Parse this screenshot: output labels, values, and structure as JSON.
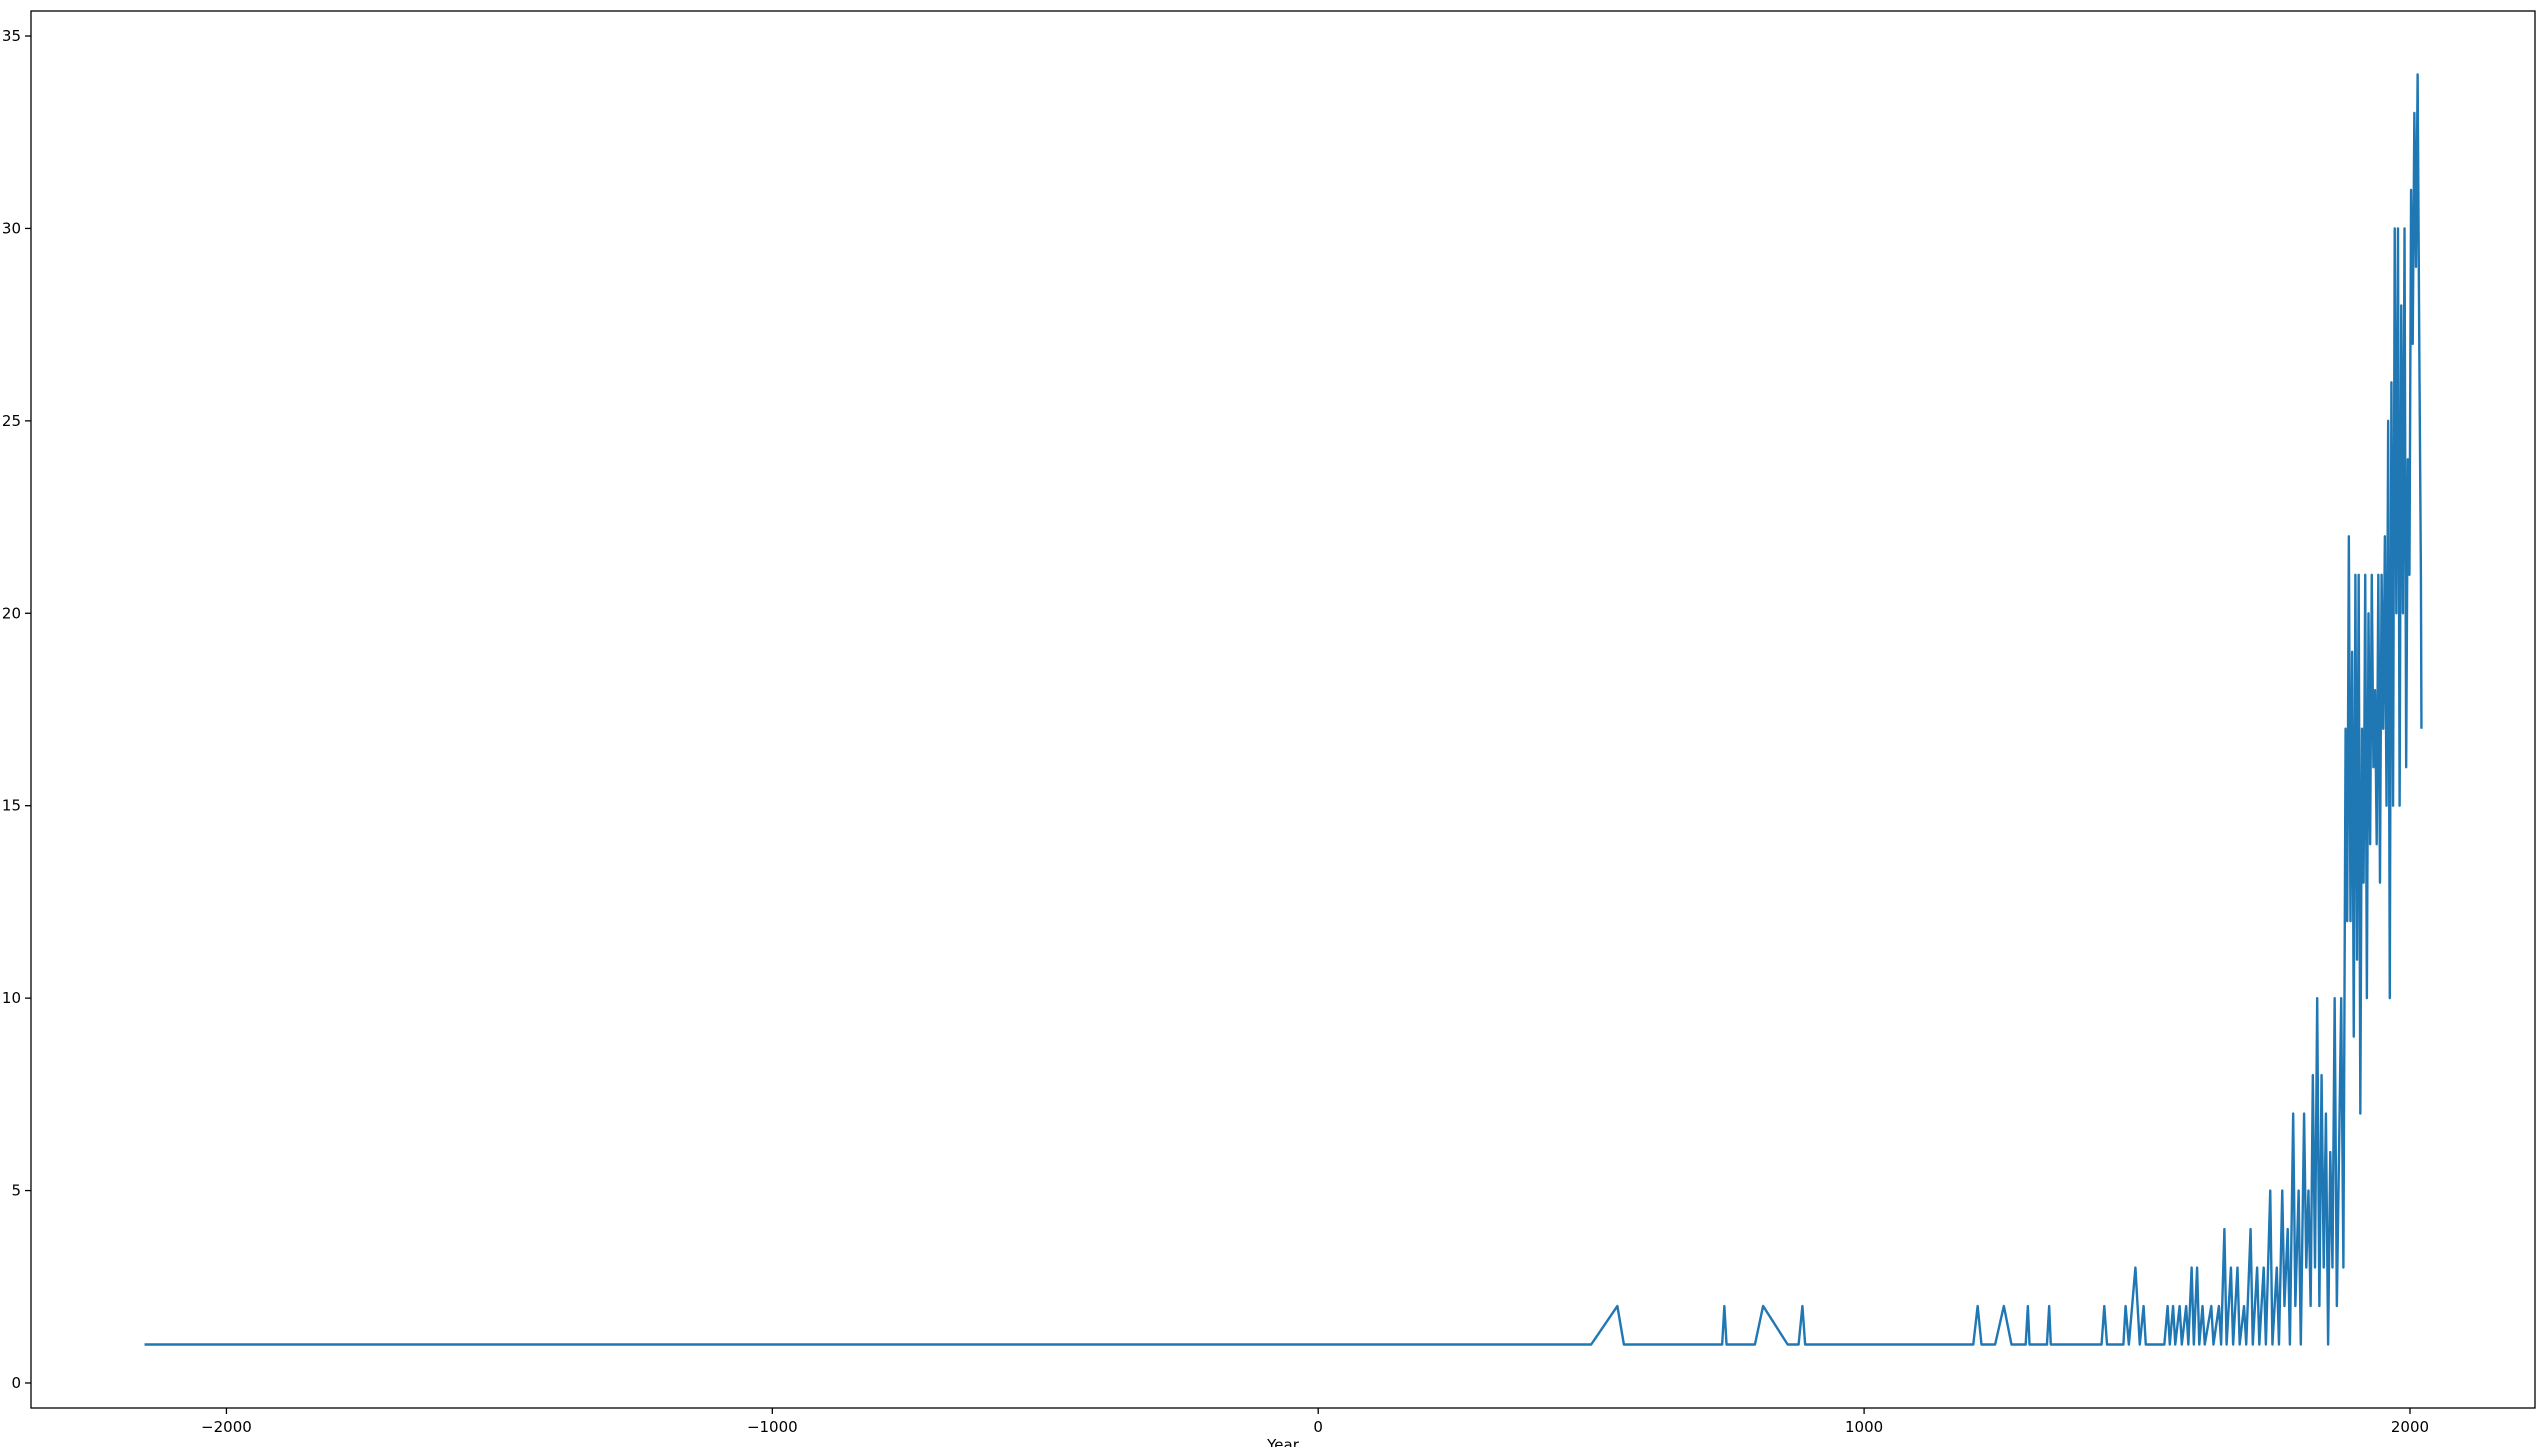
{
  "chart_data": {
    "type": "line",
    "x_label": "Year",
    "x": [
      -2150,
      500,
      548,
      560,
      740,
      744,
      748,
      800,
      815,
      860,
      880,
      887,
      892,
      1200,
      1208,
      1215,
      1240,
      1256,
      1270,
      1296,
      1300,
      1303,
      1335,
      1339,
      1342,
      1435,
      1440,
      1445,
      1475,
      1479,
      1485,
      1497,
      1505,
      1512,
      1516,
      1550,
      1556,
      1560,
      1566,
      1570,
      1578,
      1582,
      1590,
      1594,
      1600,
      1604,
      1610,
      1614,
      1620,
      1624,
      1636,
      1640,
      1650,
      1654,
      1660,
      1664,
      1672,
      1676,
      1684,
      1688,
      1696,
      1700,
      1708,
      1712,
      1720,
      1724,
      1732,
      1736,
      1744,
      1748,
      1756,
      1760,
      1766,
      1770,
      1776,
      1780,
      1786,
      1790,
      1796,
      1800,
      1806,
      1810,
      1814,
      1818,
      1822,
      1826,
      1830,
      1834,
      1838,
      1842,
      1846,
      1850,
      1854,
      1858,
      1862,
      1866,
      1870,
      1874,
      1878,
      1882,
      1885,
      1888,
      1891,
      1894,
      1897,
      1900,
      1903,
      1906,
      1909,
      1912,
      1915,
      1918,
      1921,
      1924,
      1927,
      1930,
      1933,
      1936,
      1939,
      1942,
      1945,
      1948,
      1951,
      1954,
      1957,
      1960,
      1963,
      1966,
      1969,
      1972,
      1975,
      1978,
      1981,
      1984,
      1987,
      1990,
      1993,
      1996,
      1999,
      2002,
      2005,
      2008,
      2011,
      2014,
      2017,
      2020,
      2021
    ],
    "series": [
      {
        "color": "#1f77b4",
        "values": [
          1,
          1,
          2,
          1,
          1,
          2,
          1,
          1,
          2,
          1,
          1,
          2,
          1,
          1,
          2,
          1,
          1,
          2,
          1,
          1,
          2,
          1,
          1,
          2,
          1,
          1,
          2,
          1,
          1,
          2,
          1,
          3,
          1,
          2,
          1,
          1,
          2,
          1,
          2,
          1,
          2,
          1,
          2,
          1,
          3,
          1,
          3,
          1,
          2,
          1,
          2,
          1,
          2,
          1,
          4,
          1,
          3,
          1,
          3,
          1,
          2,
          1,
          4,
          1,
          3,
          1,
          3,
          1,
          5,
          1,
          3,
          1,
          5,
          2,
          4,
          1,
          7,
          2,
          5,
          1,
          7,
          3,
          5,
          2,
          8,
          3,
          10,
          2,
          8,
          3,
          7,
          1,
          6,
          3,
          10,
          2,
          6,
          10,
          3,
          17,
          12,
          22,
          12,
          19,
          9,
          21,
          11,
          21,
          7,
          17,
          13,
          21,
          10,
          20,
          14,
          21,
          16,
          18,
          14,
          21,
          13,
          21,
          17,
          22,
          15,
          25,
          10,
          26,
          15,
          30,
          20,
          30,
          15,
          28,
          20,
          30,
          16,
          24,
          21,
          31,
          27,
          33,
          29,
          34,
          27,
          21,
          17
        ]
      }
    ],
    "xlim": [
      -2358,
      2229
    ],
    "ylim": [
      -0.65,
      35.65
    ],
    "xticks": [
      {
        "value": -2000,
        "label": "−2000"
      },
      {
        "value": -1000,
        "label": "−1000"
      },
      0,
      1000,
      2000
    ],
    "yticks": [
      0,
      5,
      10,
      15,
      20,
      25,
      30,
      35
    ]
  }
}
